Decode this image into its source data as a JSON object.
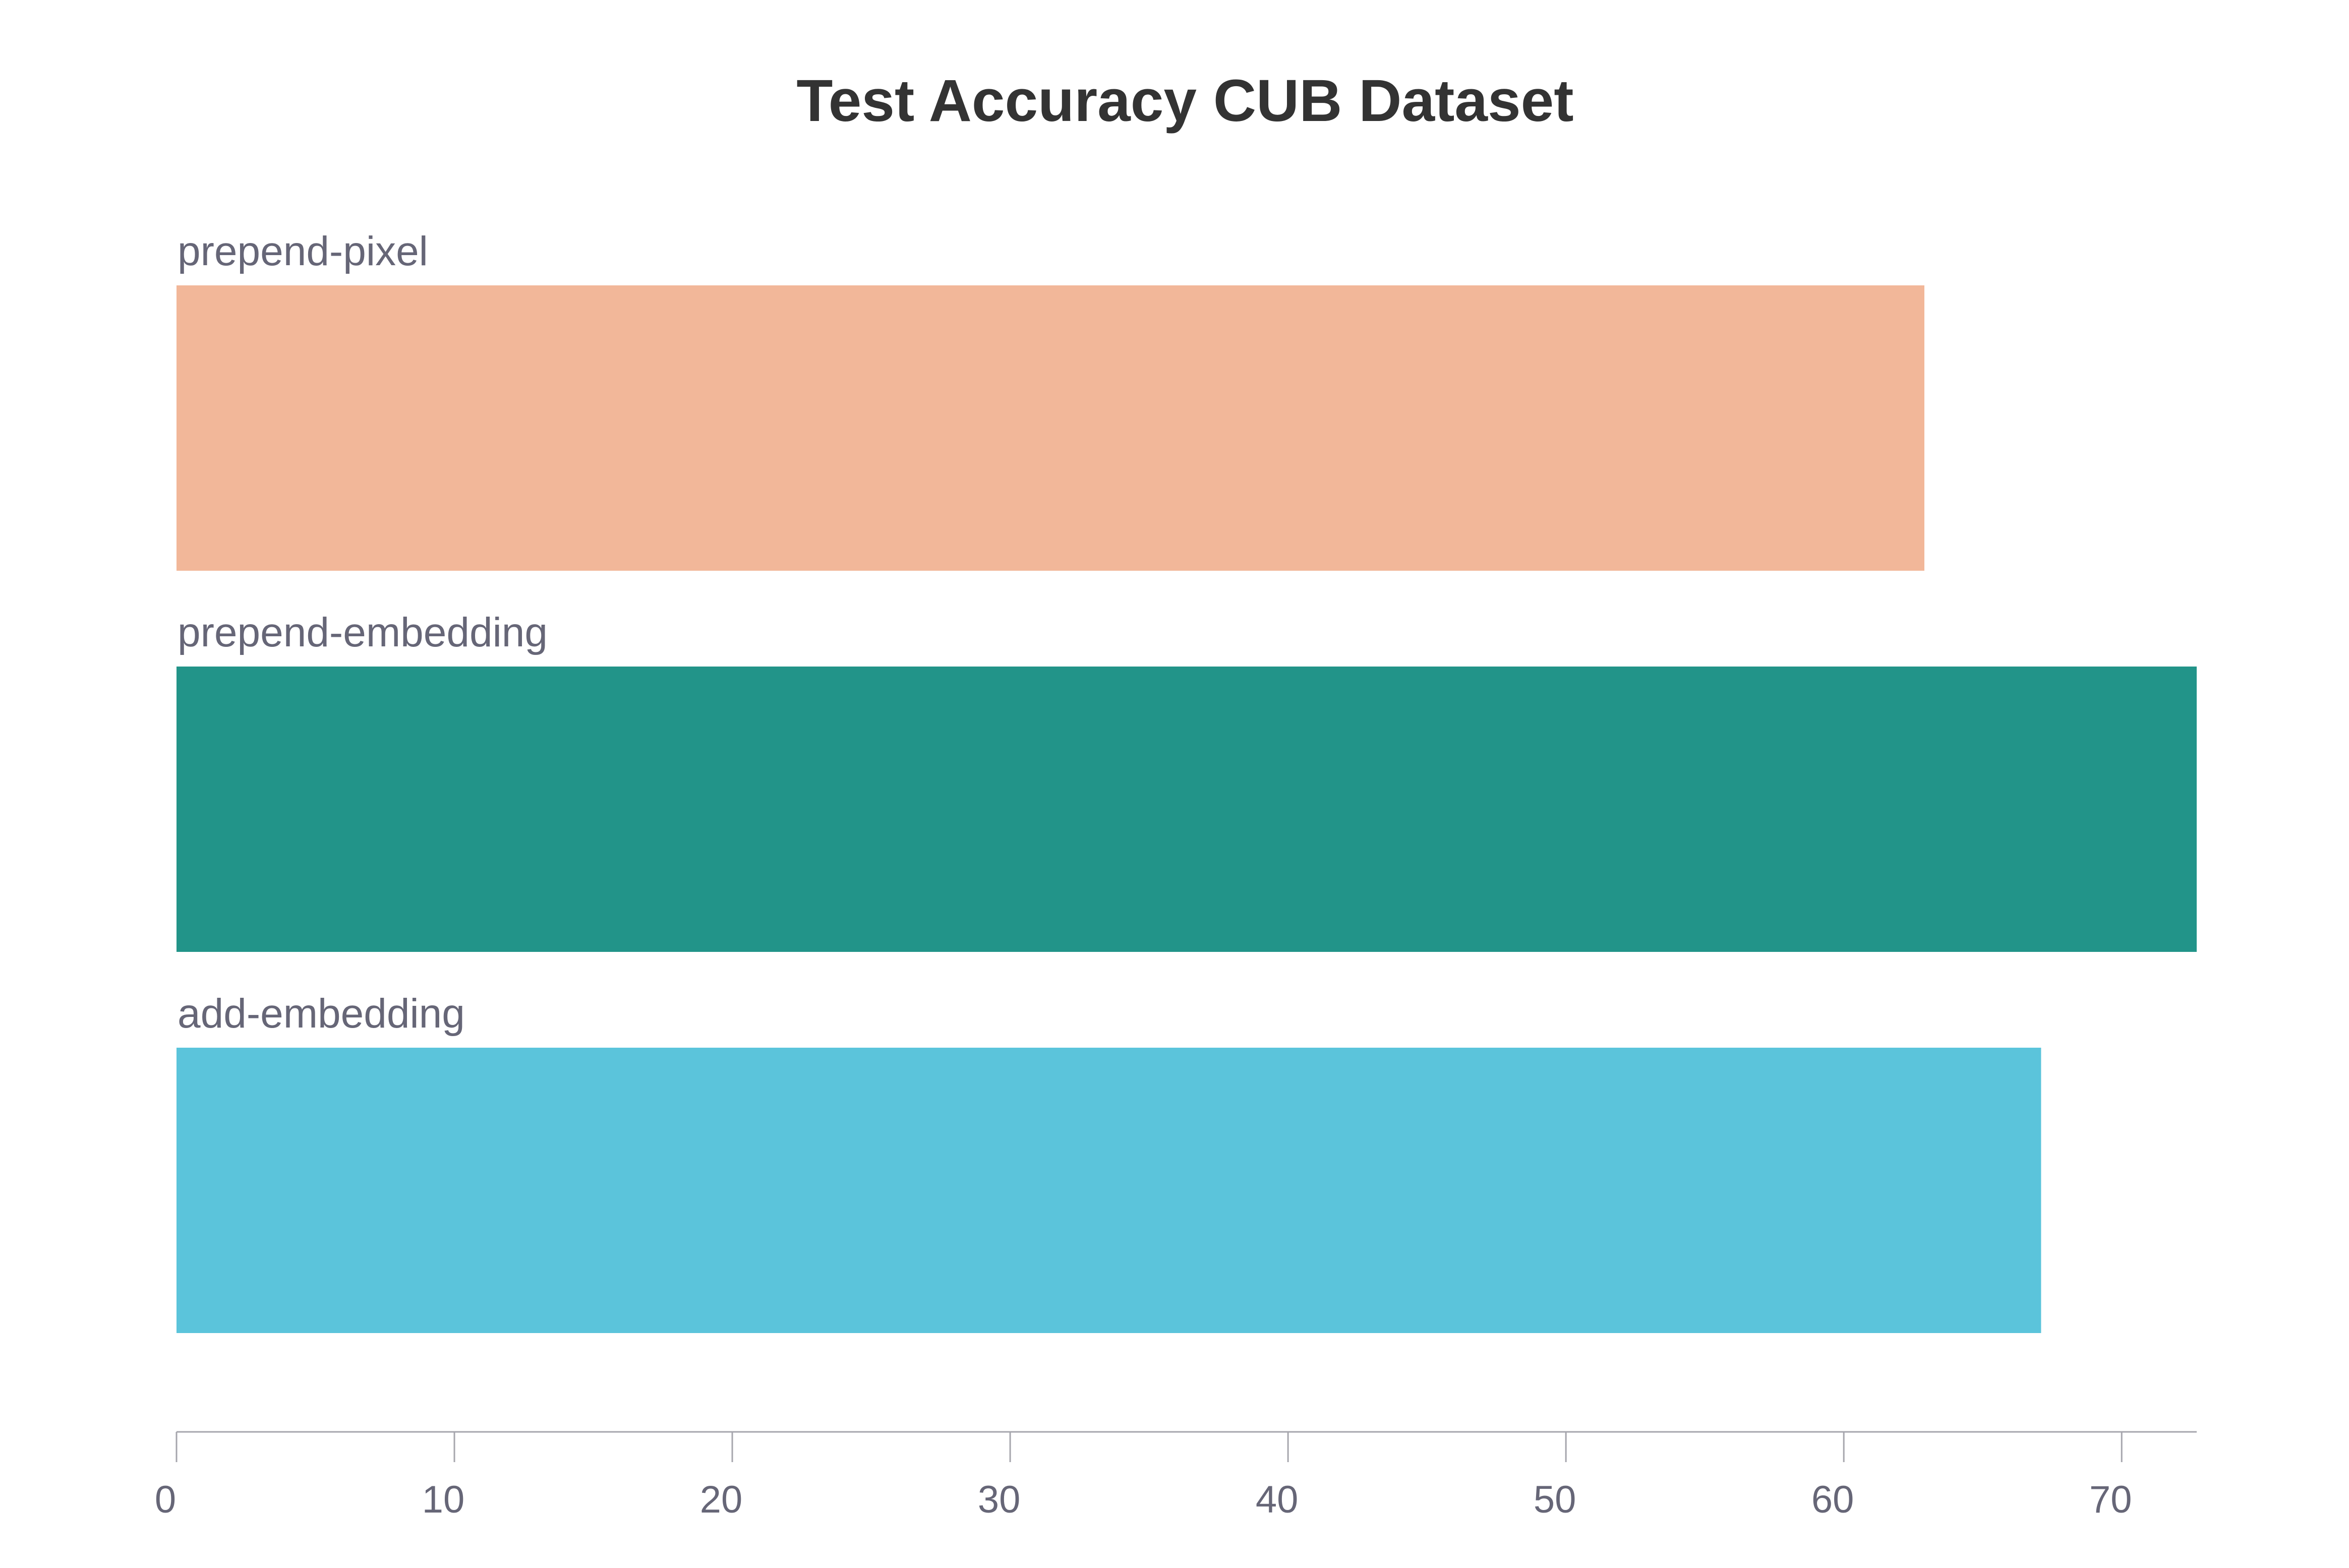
{
  "chart_data": {
    "type": "bar",
    "orientation": "horizontal",
    "title": "Test Accuracy CUB Dataset",
    "categories": [
      "prepend-pixel",
      "prepend-embedding",
      "add-embedding"
    ],
    "values": [
      62.9,
      72.7,
      67.1
    ],
    "colors": [
      "#f2b799",
      "#229489",
      "#5bc4db"
    ],
    "xlim": [
      0,
      72.7
    ],
    "xticks": [
      0,
      10,
      20,
      30,
      40,
      50,
      60,
      70
    ],
    "xlabel": "",
    "ylabel": "",
    "grid": false,
    "legend": "none"
  }
}
